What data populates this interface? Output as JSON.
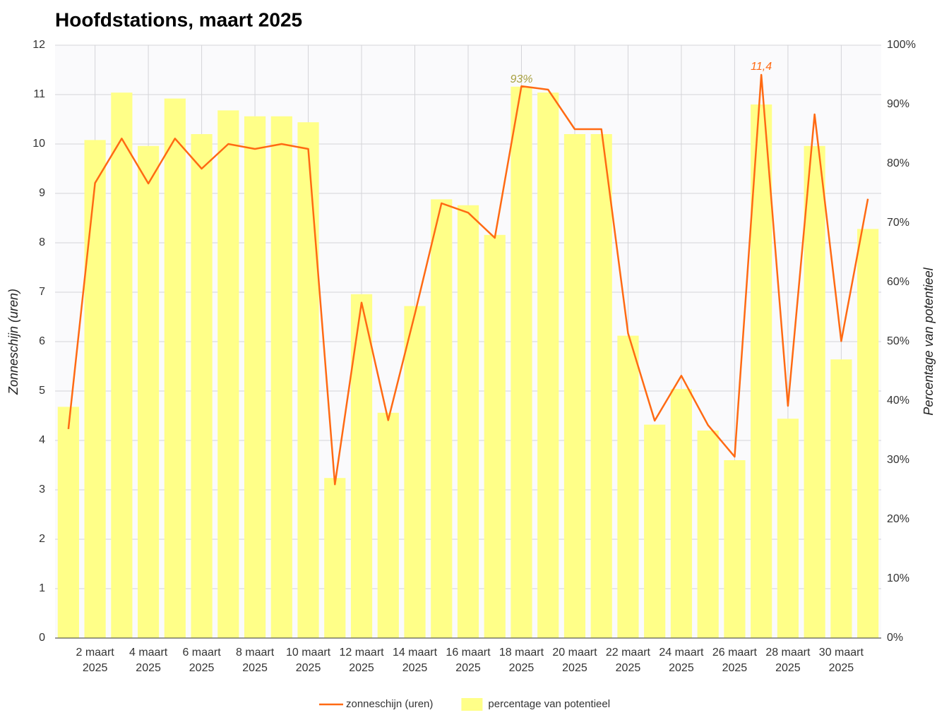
{
  "chart_data": {
    "type": "bar-line",
    "title": "Hoofdstations, maart 2025",
    "y_label": "Zonneschijn (uren)",
    "y2_label": "Percentage van potentieel",
    "categories": [
      null,
      "2 maart 2025",
      null,
      "4 maart 2025",
      null,
      "6 maart 2025",
      null,
      "8 maart 2025",
      null,
      "10 maart 2025",
      null,
      "12 maart 2025",
      null,
      "14 maart 2025",
      null,
      "16 maart 2025",
      null,
      "18 maart 2025",
      null,
      "20 maart 2025",
      null,
      "22 maart 2025",
      null,
      "24 maart 2025",
      null,
      "26 maart 2025",
      null,
      "28 maart 2025",
      null,
      "30 maart 2025",
      null
    ],
    "series": [
      {
        "name": "zonneschijn (uren)",
        "kind": "line",
        "color": "#ff6a13",
        "values": [
          4.23,
          9.21,
          10.11,
          9.2,
          10.11,
          9.5,
          10.0,
          9.9,
          10.0,
          9.9,
          3.11,
          6.79,
          4.41,
          6.56,
          8.8,
          8.61,
          8.1,
          11.17,
          11.1,
          10.3,
          10.3,
          6.17,
          4.4,
          5.31,
          4.31,
          3.67,
          11.4,
          4.7,
          10.6,
          6.01,
          8.89
        ],
        "value_labels": [
          null,
          null,
          null,
          null,
          null,
          null,
          null,
          null,
          null,
          null,
          null,
          null,
          null,
          null,
          null,
          null,
          null,
          null,
          null,
          null,
          null,
          null,
          null,
          null,
          null,
          null,
          "11,4",
          null,
          null,
          null,
          null
        ]
      },
      {
        "name": "percentage van potentieel",
        "kind": "bar",
        "axis": "y2",
        "color": "#ffff88",
        "values": [
          39,
          84,
          92,
          83,
          91,
          85,
          89,
          88,
          88,
          87,
          27,
          58,
          38,
          56,
          74,
          73,
          68,
          93,
          92,
          85,
          85,
          51,
          36,
          42,
          35,
          30,
          90,
          37,
          83,
          47,
          69
        ],
        "value_labels": [
          null,
          null,
          null,
          null,
          null,
          null,
          null,
          null,
          null,
          null,
          null,
          null,
          null,
          null,
          null,
          null,
          null,
          "93%",
          null,
          null,
          null,
          null,
          null,
          null,
          null,
          null,
          null,
          null,
          null,
          null,
          null
        ]
      }
    ],
    "ylim": [
      0,
      12
    ],
    "yticks": [
      0,
      1,
      2,
      3,
      4,
      5,
      6,
      7,
      8,
      9,
      10,
      11,
      12
    ],
    "y2lim": [
      0,
      100
    ],
    "y2ticks": [
      {
        "value": 0,
        "label": "0%"
      },
      {
        "value": 10,
        "label": "10%"
      },
      {
        "value": 20,
        "label": "20%"
      },
      {
        "value": 30,
        "label": "30%"
      },
      {
        "value": 40,
        "label": "40%"
      },
      {
        "value": 50,
        "label": "50%"
      },
      {
        "value": 60,
        "label": "60%"
      },
      {
        "value": 70,
        "label": "70%"
      },
      {
        "value": 80,
        "label": "80%"
      },
      {
        "value": 90,
        "label": "90%"
      },
      {
        "value": 100,
        "label": "100%"
      }
    ],
    "grid": true,
    "legend": "bottom"
  }
}
